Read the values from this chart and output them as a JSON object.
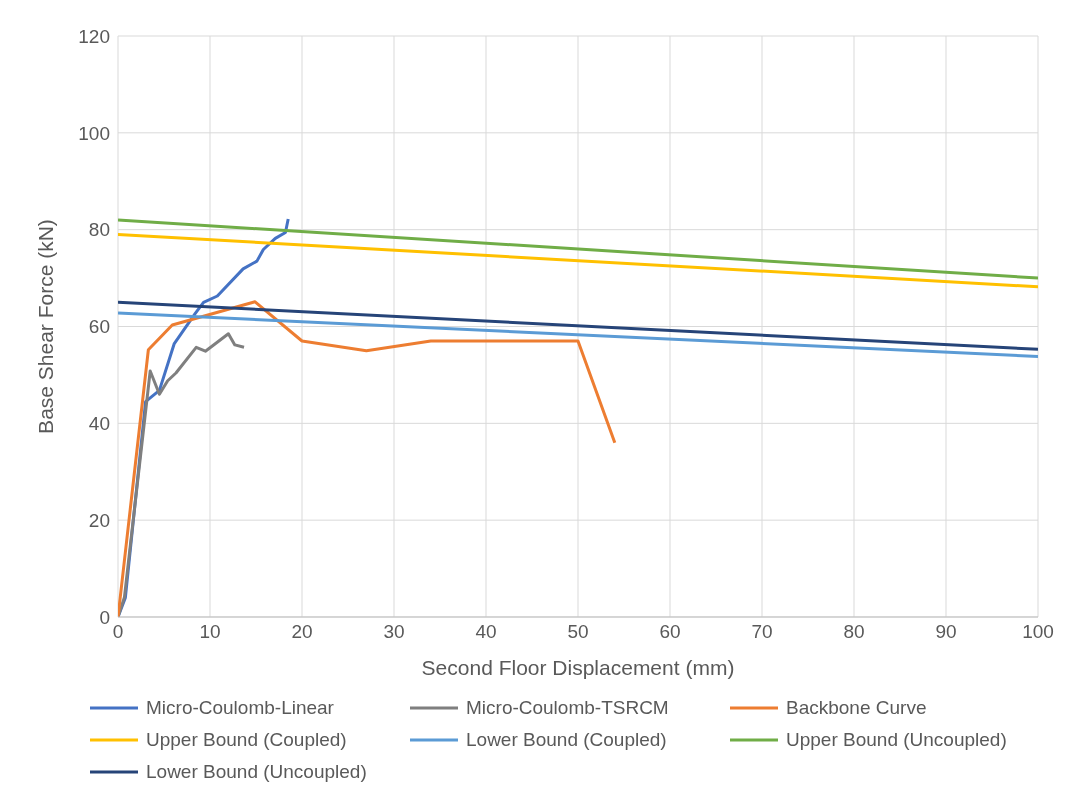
{
  "chart_data": {
    "type": "line",
    "xlabel": "Second Floor Displacement (mm)",
    "ylabel": "Base Shear Force (kN)",
    "xlim": [
      0,
      100
    ],
    "xticks": [
      0,
      10,
      20,
      30,
      40,
      50,
      60,
      70,
      80,
      90,
      100
    ],
    "ylim": [
      0,
      120
    ],
    "yticks": [
      0,
      20,
      40,
      60,
      80,
      100,
      120
    ],
    "grid": true,
    "legend": "bottom",
    "marker": "none",
    "line_style": "solid",
    "series": [
      {
        "name": "Micro-Coulomb-Linear",
        "color": "#4472c4",
        "x": [
          0,
          0.8,
          3,
          4.5,
          6.1,
          8.4,
          9.3,
          10.8,
          13.6,
          15.1,
          15.8,
          17.1,
          18.2,
          18.5
        ],
        "values": [
          0,
          4,
          44.5,
          46.8,
          56.4,
          62.7,
          65,
          66.3,
          71.9,
          73.5,
          75.9,
          78.2,
          79.4,
          82.2
        ]
      },
      {
        "name": "Micro-Coulomb-TSRCM",
        "color": "#7f7f7f",
        "x": [
          0,
          0.7,
          3.5,
          4.5,
          5.4,
          6.3,
          8.5,
          9.5,
          12,
          12.7,
          13.7
        ],
        "values": [
          0,
          4.1,
          50.8,
          46,
          48.8,
          50.4,
          55.7,
          54.9,
          58.5,
          56.2,
          55.7
        ]
      },
      {
        "name": "Backbone Curve",
        "color": "#ed7d31",
        "x": [
          0,
          3.3,
          5.9,
          14.9,
          20,
          27,
          34,
          50,
          54
        ],
        "values": [
          0,
          55.2,
          60.3,
          65.1,
          57,
          55,
          57,
          57,
          36
        ]
      },
      {
        "name": "Upper Bound (Coupled)",
        "color": "#ffc000",
        "x": [
          0,
          100
        ],
        "values": [
          79,
          68.2
        ]
      },
      {
        "name": "Lower Bound (Coupled)",
        "color": "#5b9bd5",
        "x": [
          0,
          100
        ],
        "values": [
          62.8,
          53.8
        ]
      },
      {
        "name": "Upper Bound (Uncoupled)",
        "color": "#70ad47",
        "x": [
          0,
          100
        ],
        "values": [
          82,
          70
        ]
      },
      {
        "name": "Lower Bound (Uncoupled)",
        "color": "#264478",
        "x": [
          0,
          100
        ],
        "values": [
          65,
          55.3
        ]
      }
    ]
  }
}
